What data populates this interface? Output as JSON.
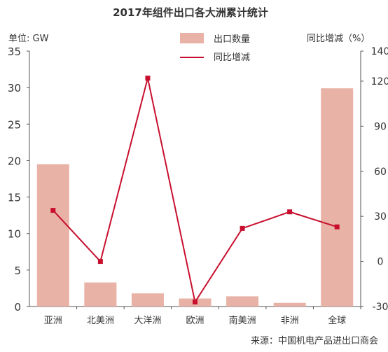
{
  "chart_data": {
    "type": "bar",
    "title": "2017年组件出口各大洲累计统计",
    "y_left_unit": "单位: GW",
    "y_right_label": "同比增减（%）",
    "source": "来源：中国机电产品进出口商会",
    "categories": [
      "亚洲",
      "北美洲",
      "大洋洲",
      "欧洲",
      "南美洲",
      "非洲",
      "全球"
    ],
    "ylim_left": [
      0,
      35
    ],
    "yticks_left": [
      "0",
      "5",
      "10",
      "15",
      "20",
      "25",
      "30",
      "35"
    ],
    "ylim_right": [
      -30,
      140
    ],
    "yticks_right": [
      "-30",
      "0",
      "30",
      "60",
      "90",
      "120",
      "140"
    ],
    "series": [
      {
        "name": "出口数量",
        "type": "bar",
        "axis": "left",
        "color": "#e9b2a6",
        "values": [
          19.5,
          3.3,
          1.8,
          1.1,
          1.4,
          0.5,
          29.9
        ]
      },
      {
        "name": "同比增减",
        "type": "line",
        "axis": "right",
        "color": "#c8102e",
        "values": [
          34,
          0,
          122,
          -27,
          22,
          33,
          23
        ]
      }
    ],
    "legend_position": "top-center",
    "grid": false
  }
}
